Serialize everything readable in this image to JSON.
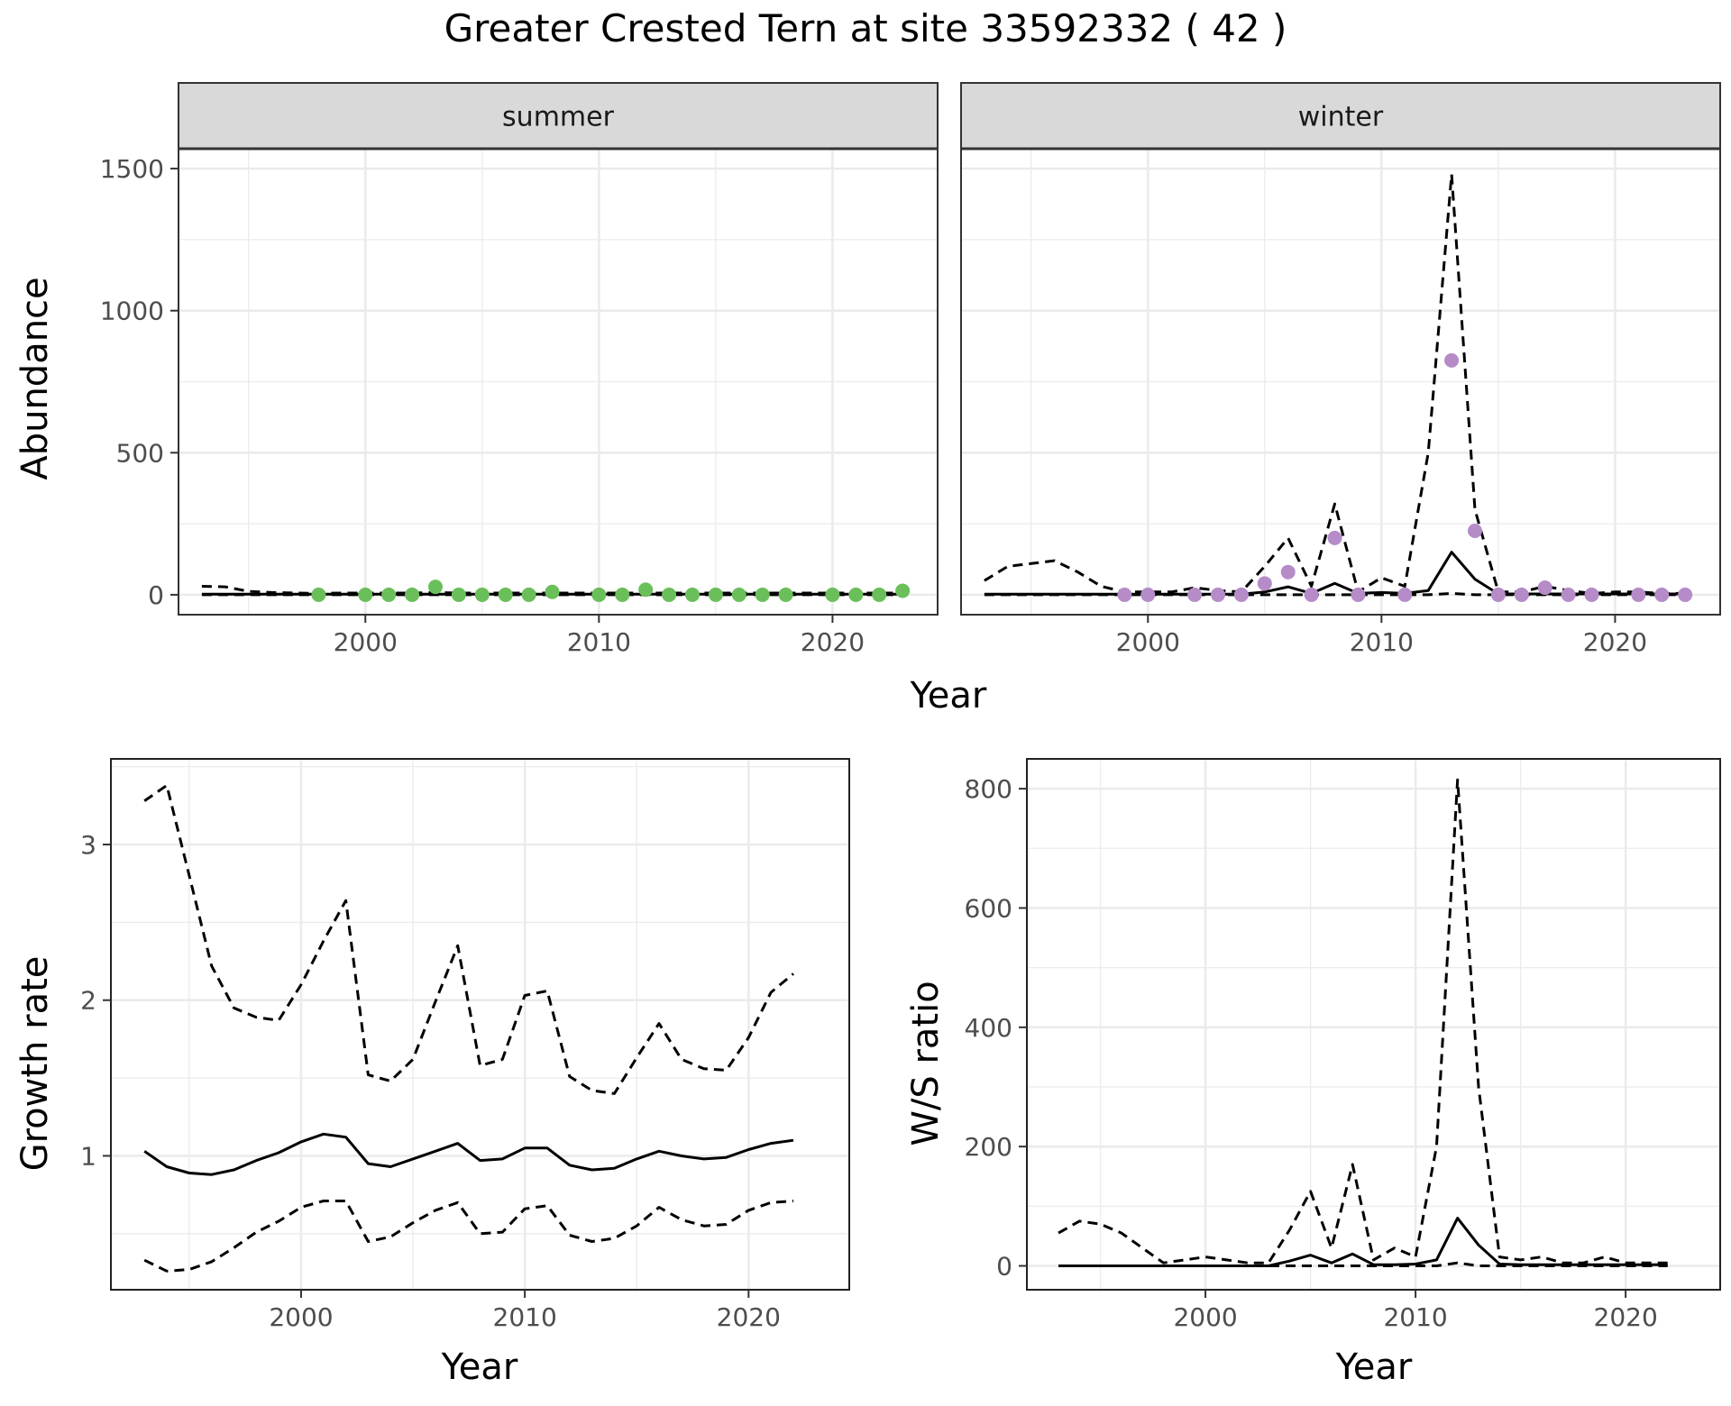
{
  "title": "Greater Crested Tern at site 33592332 ( 42 )",
  "colors": {
    "summer_points": "#6abf5a",
    "winter_points": "#b58cc8",
    "lines": "#000000",
    "panel_border": "#333333",
    "strip_fill": "#d9d9d9",
    "grid": "#ebebeb"
  },
  "chart_data": [
    {
      "type": "line",
      "facet": "summer",
      "strip_label": "summer",
      "ylabel": "Abundance",
      "xlabel": "Year",
      "x_ticks": [
        2000,
        2010,
        2020
      ],
      "y_ticks": [
        0,
        500,
        1000,
        1500
      ],
      "xlim": [
        1992,
        2024.5
      ],
      "ylim": [
        -70,
        1570
      ],
      "grid": true,
      "series": [
        {
          "role": "estimate",
          "style": "solid",
          "x": [
            1993,
            1994,
            1995,
            1996,
            1997,
            1998,
            1999,
            2000,
            2001,
            2002,
            2003,
            2004,
            2005,
            2006,
            2007,
            2008,
            2009,
            2010,
            2011,
            2012,
            2013,
            2014,
            2015,
            2016,
            2017,
            2018,
            2019,
            2020,
            2021,
            2022,
            2023
          ],
          "values": [
            2,
            2,
            2,
            2,
            2,
            2,
            2,
            2,
            2,
            2,
            2,
            2,
            2,
            2,
            2,
            2,
            2,
            2,
            2,
            2,
            2,
            2,
            2,
            2,
            2,
            2,
            2,
            2,
            2,
            2,
            2
          ]
        },
        {
          "role": "upper",
          "style": "dashed",
          "x": [
            1993,
            1994,
            1995,
            1996,
            1997,
            1998,
            1999,
            2000,
            2001,
            2002,
            2003,
            2004,
            2005,
            2006,
            2007,
            2008,
            2009,
            2010,
            2011,
            2012,
            2013,
            2014,
            2015,
            2016,
            2017,
            2018,
            2019,
            2020,
            2021,
            2022,
            2023
          ],
          "values": [
            30,
            28,
            12,
            8,
            6,
            5,
            6,
            6,
            6,
            6,
            8,
            6,
            6,
            6,
            6,
            6,
            6,
            6,
            6,
            6,
            6,
            6,
            6,
            6,
            6,
            6,
            6,
            6,
            6,
            6,
            6
          ]
        },
        {
          "role": "lower",
          "style": "dashed",
          "x": [
            1993,
            2023
          ],
          "values": [
            0,
            0
          ]
        }
      ],
      "points": {
        "x": [
          1998,
          2000,
          2001,
          2002,
          2003,
          2004,
          2005,
          2006,
          2007,
          2008,
          2010,
          2011,
          2012,
          2013,
          2014,
          2015,
          2016,
          2017,
          2018,
          2020,
          2021,
          2022,
          2023
        ],
        "values": [
          0,
          0,
          0,
          0,
          28,
          0,
          0,
          0,
          0,
          10,
          0,
          0,
          18,
          0,
          0,
          0,
          0,
          0,
          0,
          0,
          0,
          0,
          14
        ]
      }
    },
    {
      "type": "line",
      "facet": "winter",
      "strip_label": "winter",
      "ylabel": "Abundance",
      "xlabel": "Year",
      "x_ticks": [
        2000,
        2010,
        2020
      ],
      "y_ticks": [
        0,
        500,
        1000,
        1500
      ],
      "xlim": [
        1992,
        2024.5
      ],
      "ylim": [
        -70,
        1570
      ],
      "grid": true,
      "series": [
        {
          "role": "estimate",
          "style": "solid",
          "x": [
            1993,
            1994,
            1995,
            1996,
            1997,
            1998,
            1999,
            2000,
            2001,
            2002,
            2003,
            2004,
            2005,
            2006,
            2007,
            2008,
            2009,
            2010,
            2011,
            2012,
            2013,
            2014,
            2015,
            2016,
            2017,
            2018,
            2019,
            2020,
            2021,
            2022,
            2023
          ],
          "values": [
            2,
            2,
            2,
            2,
            2,
            2,
            2,
            2,
            2,
            2,
            2,
            2,
            10,
            28,
            5,
            40,
            5,
            8,
            5,
            15,
            150,
            55,
            3,
            3,
            3,
            3,
            3,
            3,
            3,
            3,
            3
          ]
        },
        {
          "role": "upper",
          "style": "dashed",
          "x": [
            1993,
            1994,
            1995,
            1996,
            1997,
            1998,
            1999,
            2000,
            2001,
            2002,
            2003,
            2004,
            2005,
            2006,
            2007,
            2008,
            2009,
            2010,
            2011,
            2012,
            2013,
            2014,
            2015,
            2016,
            2017,
            2018,
            2019,
            2020,
            2021,
            2022,
            2023
          ],
          "values": [
            50,
            100,
            110,
            120,
            80,
            30,
            10,
            10,
            10,
            25,
            15,
            10,
            100,
            200,
            30,
            320,
            10,
            60,
            30,
            500,
            1480,
            300,
            10,
            10,
            30,
            15,
            5,
            10,
            10,
            5,
            5
          ]
        },
        {
          "role": "lower",
          "style": "dashed",
          "x": [
            1993,
            2012,
            2013,
            2014,
            2023
          ],
          "values": [
            0,
            0,
            5,
            0,
            0
          ]
        }
      ],
      "points": {
        "x": [
          1999,
          2000,
          2002,
          2003,
          2004,
          2005,
          2006,
          2007,
          2008,
          2009,
          2011,
          2013,
          2014,
          2015,
          2016,
          2017,
          2018,
          2019,
          2021,
          2022,
          2023
        ],
        "values": [
          0,
          0,
          0,
          0,
          0,
          40,
          80,
          0,
          200,
          0,
          0,
          825,
          225,
          0,
          0,
          25,
          0,
          0,
          0,
          0,
          0
        ]
      }
    },
    {
      "type": "line",
      "facet": "growth",
      "ylabel": "Growth rate",
      "xlabel": "Year",
      "x_ticks": [
        2000,
        2010,
        2020
      ],
      "y_ticks": [
        1,
        2,
        3
      ],
      "xlim": [
        1991.5,
        2024.5
      ],
      "ylim": [
        0.14,
        3.55
      ],
      "grid": true,
      "series": [
        {
          "role": "estimate",
          "style": "solid",
          "x": [
            1993,
            1994,
            1995,
            1996,
            1997,
            1998,
            1999,
            2000,
            2001,
            2002,
            2003,
            2004,
            2005,
            2006,
            2007,
            2008,
            2009,
            2010,
            2011,
            2012,
            2013,
            2014,
            2015,
            2016,
            2017,
            2018,
            2019,
            2020,
            2021,
            2022
          ],
          "values": [
            1.03,
            0.93,
            0.89,
            0.88,
            0.91,
            0.97,
            1.02,
            1.09,
            1.14,
            1.12,
            0.95,
            0.93,
            0.98,
            1.03,
            1.08,
            0.97,
            0.98,
            1.05,
            1.05,
            0.94,
            0.91,
            0.92,
            0.98,
            1.03,
            1.0,
            0.98,
            0.99,
            1.04,
            1.08,
            1.1
          ]
        },
        {
          "role": "upper",
          "style": "dashed",
          "x": [
            1993,
            1994,
            1995,
            1996,
            1997,
            1998,
            1999,
            2000,
            2001,
            2002,
            2003,
            2004,
            2005,
            2006,
            2007,
            2008,
            2009,
            2010,
            2011,
            2012,
            2013,
            2014,
            2015,
            2016,
            2017,
            2018,
            2019,
            2020,
            2021,
            2022
          ],
          "values": [
            3.28,
            3.38,
            2.8,
            2.22,
            1.95,
            1.89,
            1.87,
            2.1,
            2.38,
            2.64,
            1.52,
            1.48,
            1.62,
            1.99,
            2.35,
            1.58,
            1.62,
            2.03,
            2.06,
            1.51,
            1.42,
            1.4,
            1.63,
            1.85,
            1.62,
            1.56,
            1.55,
            1.76,
            2.05,
            2.17
          ]
        },
        {
          "role": "lower",
          "style": "dashed",
          "x": [
            1993,
            1994,
            1995,
            1996,
            1997,
            1998,
            1999,
            2000,
            2001,
            2002,
            2003,
            2004,
            2005,
            2006,
            2007,
            2008,
            2009,
            2010,
            2011,
            2012,
            2013,
            2014,
            2015,
            2016,
            2017,
            2018,
            2019,
            2020,
            2021,
            2022
          ],
          "values": [
            0.33,
            0.26,
            0.27,
            0.32,
            0.41,
            0.51,
            0.58,
            0.67,
            0.71,
            0.71,
            0.45,
            0.48,
            0.57,
            0.65,
            0.7,
            0.5,
            0.51,
            0.66,
            0.68,
            0.49,
            0.45,
            0.47,
            0.55,
            0.67,
            0.59,
            0.55,
            0.56,
            0.65,
            0.7,
            0.71
          ]
        }
      ]
    },
    {
      "type": "line",
      "facet": "ws_ratio",
      "ylabel": "W/S ratio",
      "xlabel": "Year",
      "x_ticks": [
        2000,
        2010,
        2020
      ],
      "y_ticks": [
        0,
        200,
        400,
        600,
        800
      ],
      "xlim": [
        1991.5,
        2024.5
      ],
      "ylim": [
        -40,
        850
      ],
      "grid": true,
      "series": [
        {
          "role": "estimate",
          "style": "solid",
          "x": [
            1993,
            1994,
            1995,
            1996,
            1997,
            1998,
            1999,
            2000,
            2001,
            2002,
            2003,
            2004,
            2005,
            2006,
            2007,
            2008,
            2009,
            2010,
            2011,
            2012,
            2013,
            2014,
            2015,
            2016,
            2017,
            2018,
            2019,
            2020,
            2021,
            2022
          ],
          "values": [
            0,
            0,
            0,
            0,
            0,
            0,
            0,
            0,
            0,
            0,
            0,
            8,
            18,
            5,
            20,
            2,
            2,
            3,
            10,
            80,
            35,
            3,
            2,
            2,
            2,
            2,
            2,
            2,
            2,
            2
          ]
        },
        {
          "role": "upper",
          "style": "dashed",
          "x": [
            1993,
            1994,
            1995,
            1996,
            1997,
            1998,
            1999,
            2000,
            2001,
            2002,
            2003,
            2004,
            2005,
            2006,
            2007,
            2008,
            2009,
            2010,
            2011,
            2012,
            2013,
            2014,
            2015,
            2016,
            2017,
            2018,
            2019,
            2020,
            2021,
            2022
          ],
          "values": [
            55,
            75,
            70,
            55,
            30,
            5,
            10,
            15,
            10,
            5,
            5,
            60,
            125,
            30,
            170,
            10,
            30,
            15,
            200,
            815,
            300,
            15,
            10,
            15,
            5,
            5,
            15,
            5,
            5,
            5
          ]
        },
        {
          "role": "lower",
          "style": "dashed",
          "x": [
            1993,
            2011,
            2012,
            2013,
            2022
          ],
          "values": [
            0,
            0,
            5,
            0,
            0
          ]
        }
      ]
    }
  ]
}
